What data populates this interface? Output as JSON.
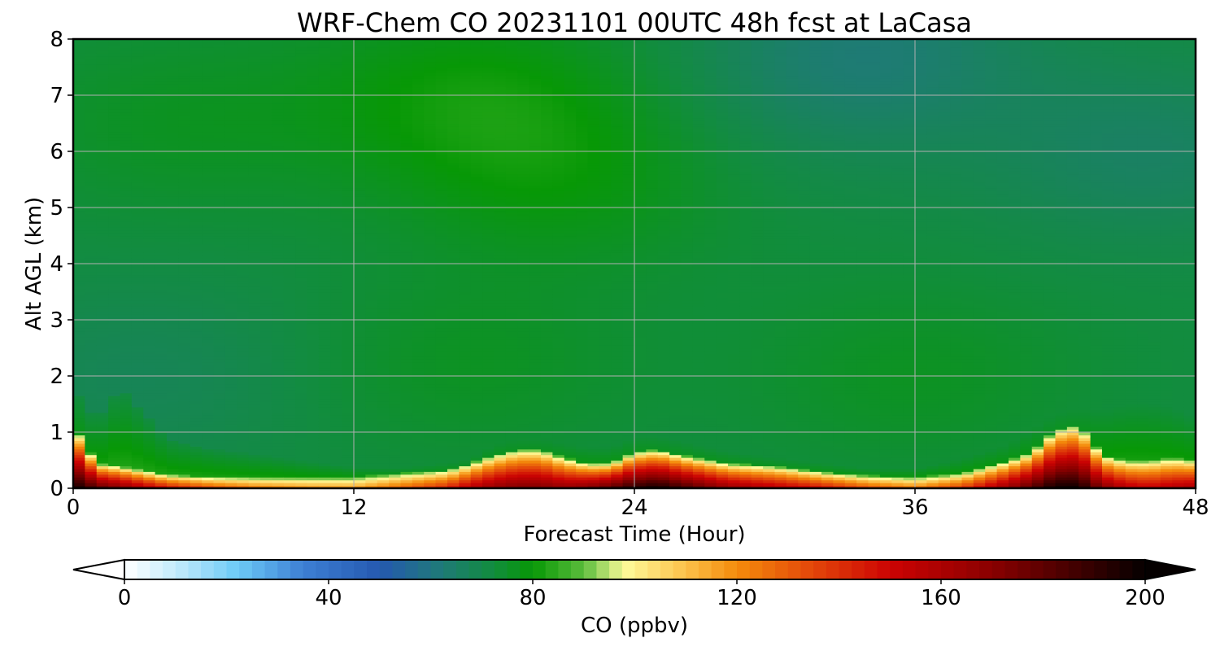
{
  "chart_data": {
    "type": "heatmap",
    "title": "WRF-Chem CO  20231101 00UTC 48h fcst at LaCasa",
    "xlabel": "Forecast Time (Hour)",
    "ylabel": "Alt AGL (km)",
    "xlim": [
      0,
      48
    ],
    "ylim": [
      0,
      8
    ],
    "xticks": [
      "0",
      "12",
      "24",
      "36",
      "48"
    ],
    "yticks": [
      "0",
      "1",
      "2",
      "3",
      "4",
      "5",
      "6",
      "7",
      "8"
    ],
    "grid": true,
    "colorbar": {
      "label": "CO  (ppbv)",
      "range": [
        0,
        200
      ],
      "ticks": [
        "0",
        "40",
        "80",
        "120",
        "160",
        "200"
      ],
      "extend": "both"
    },
    "background_ppbv": 72,
    "upper_regions": [
      {
        "t": 4.5,
        "z": 6.5,
        "value": 76
      },
      {
        "t": 17,
        "z": 7.0,
        "value": 80
      },
      {
        "t": 21,
        "z": 5.5,
        "value": 78
      },
      {
        "t": 17,
        "z": 2.2,
        "value": 76
      },
      {
        "t": 36,
        "z": 2.0,
        "value": 76
      },
      {
        "t": 34,
        "z": 7.9,
        "value": 64
      },
      {
        "t": 46,
        "z": 6.0,
        "value": 66
      },
      {
        "t": 3,
        "z": 2.0,
        "value": 68
      },
      {
        "t": 32,
        "z": 6.8,
        "value": 70
      }
    ],
    "surface_layer": {
      "t": [
        0,
        1,
        2,
        4,
        6,
        8,
        10,
        12,
        14,
        16,
        17,
        18,
        19,
        20,
        21,
        22,
        23,
        24,
        25,
        26,
        28,
        30,
        32,
        34,
        36,
        38,
        40,
        41,
        42,
        43,
        44,
        45,
        46,
        47,
        48
      ],
      "z_plume_km": [
        1.0,
        0.3,
        0.25,
        0.1,
        0.06,
        0.05,
        0.05,
        0.05,
        0.12,
        0.18,
        0.3,
        0.45,
        0.55,
        0.55,
        0.4,
        0.3,
        0.3,
        0.5,
        0.55,
        0.45,
        0.3,
        0.25,
        0.15,
        0.08,
        0.05,
        0.12,
        0.35,
        0.5,
        0.9,
        1.0,
        0.45,
        0.35,
        0.35,
        0.4,
        0.35
      ],
      "z_green_km": [
        1.8,
        1.2,
        1.8,
        0.9,
        0.7,
        0.6,
        0.5,
        0.4,
        0.4,
        0.5,
        0.6,
        0.9,
        1.0,
        1.0,
        0.9,
        0.8,
        0.8,
        1.0,
        1.0,
        0.9,
        0.7,
        0.6,
        0.5,
        0.4,
        0.4,
        0.6,
        0.9,
        1.2,
        1.5,
        1.6,
        1.5,
        1.6,
        1.6,
        1.5,
        1.3
      ],
      "peak_ppbv": [
        200,
        185,
        175,
        150,
        135,
        125,
        120,
        118,
        130,
        145,
        160,
        170,
        175,
        175,
        170,
        175,
        185,
        195,
        200,
        190,
        170,
        160,
        150,
        135,
        125,
        140,
        170,
        185,
        200,
        200,
        175,
        160,
        155,
        160,
        165
      ]
    }
  }
}
